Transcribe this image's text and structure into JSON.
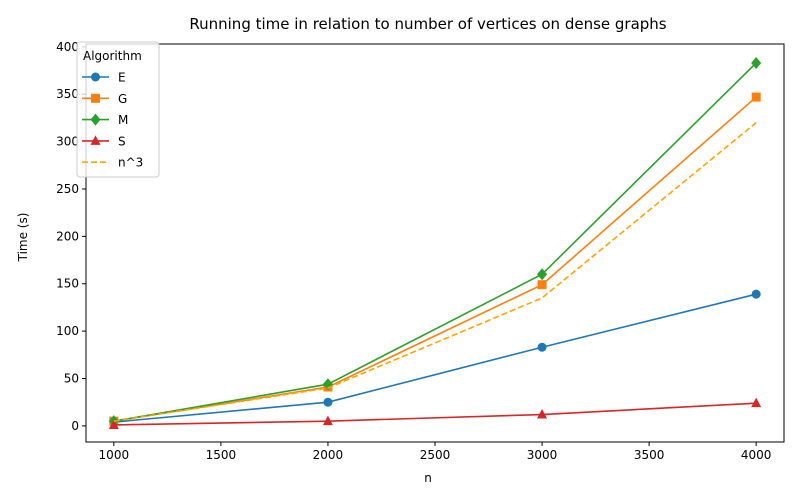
{
  "chart_data": {
    "type": "line",
    "title": "Running time in relation to number of vertices on dense graphs",
    "xlabel": "n",
    "ylabel": "Time (s)",
    "x": [
      1000,
      2000,
      3000,
      4000
    ],
    "xlim": [
      870,
      4130
    ],
    "ylim": [
      -17,
      403
    ],
    "xticks": [
      1000,
      1500,
      2000,
      2500,
      3000,
      3500,
      4000
    ],
    "yticks": [
      0,
      50,
      100,
      150,
      200,
      250,
      300,
      350,
      400
    ],
    "grid": false,
    "legend": {
      "title": "Algorithm",
      "position": "top-left"
    },
    "series": [
      {
        "name": "E",
        "values": [
          4,
          25,
          83,
          139
        ],
        "color": "#1f77b4",
        "marker": "circle",
        "dash": "solid"
      },
      {
        "name": "G",
        "values": [
          5,
          41,
          149,
          347
        ],
        "color": "#ff7f0e",
        "marker": "square",
        "dash": "solid"
      },
      {
        "name": "M",
        "values": [
          5,
          44,
          160,
          383
        ],
        "color": "#2ca02c",
        "marker": "diamond",
        "dash": "solid"
      },
      {
        "name": "S",
        "values": [
          1,
          5,
          12,
          24
        ],
        "color": "#d62728",
        "marker": "triangle",
        "dash": "solid"
      },
      {
        "name": "n^3",
        "values": [
          5,
          40,
          135,
          320
        ],
        "color": "#ffa500",
        "marker": "none",
        "dash": "dashed"
      }
    ]
  }
}
